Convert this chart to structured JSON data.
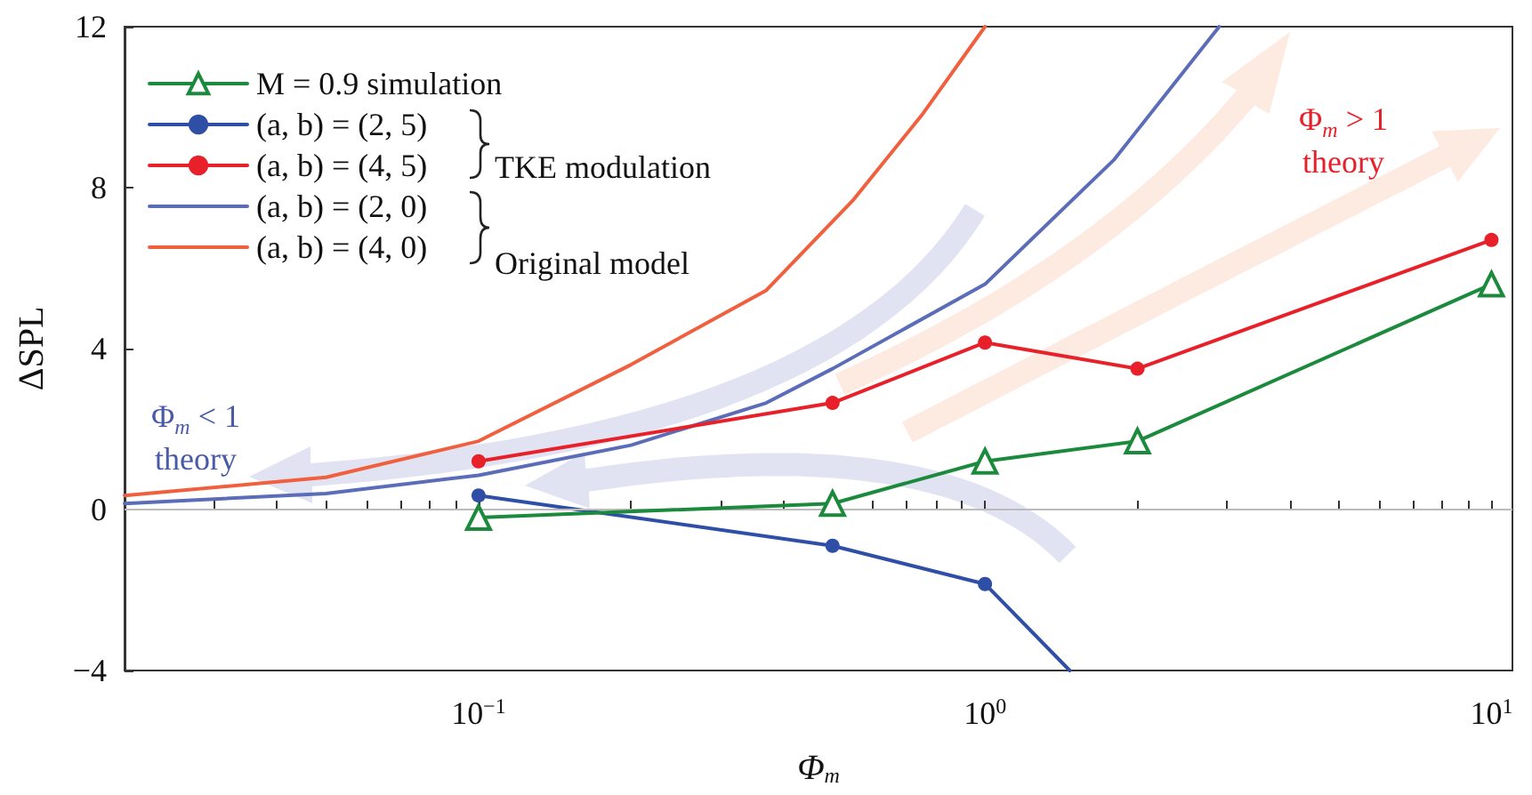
{
  "chart_data": {
    "type": "line",
    "xlabel": "Φ$_{m}$",
    "ylabel": "ΔSPL",
    "log": "x",
    "xlim": [
      0.02,
      11
    ],
    "ylim": [
      -4,
      12
    ],
    "xticks": [
      {
        "value": 0.03,
        "label": null
      },
      {
        "value": 0.04,
        "label": null
      },
      {
        "value": 0.05,
        "label": null
      },
      {
        "value": 0.06,
        "label": null
      },
      {
        "value": 0.07,
        "label": null
      },
      {
        "value": 0.08,
        "label": null
      },
      {
        "value": 0.09,
        "label": null
      },
      {
        "value": 0.1,
        "label": "10$^{−1}$"
      },
      {
        "value": 0.2,
        "label": null
      },
      {
        "value": 0.3,
        "label": null
      },
      {
        "value": 0.4,
        "label": null
      },
      {
        "value": 0.5,
        "label": null
      },
      {
        "value": 0.6,
        "label": null
      },
      {
        "value": 0.7,
        "label": null
      },
      {
        "value": 0.8,
        "label": null
      },
      {
        "value": 0.9,
        "label": null
      },
      {
        "value": 1,
        "label": "10$^{0}$"
      },
      {
        "value": 2,
        "label": null
      },
      {
        "value": 3,
        "label": null
      },
      {
        "value": 4,
        "label": null
      },
      {
        "value": 5,
        "label": null
      },
      {
        "value": 6,
        "label": null
      },
      {
        "value": 7,
        "label": null
      },
      {
        "value": 8,
        "label": null
      },
      {
        "value": 9,
        "label": null
      },
      {
        "value": 10,
        "label": "10$^{1}$"
      }
    ],
    "yticks": [
      {
        "value": -4,
        "label": "−4"
      },
      0,
      4,
      8,
      12
    ],
    "grid": false,
    "legend": "top left",
    "series": [
      {
        "name": "M = 0.9 simulation",
        "color": "#1b8a3c",
        "marker": "triangle",
        "x": [
          0.1,
          0.5,
          1,
          2,
          10
        ],
        "values": [
          -0.2,
          0.15,
          1.2,
          1.7,
          5.6
        ]
      },
      {
        "name": "(a, b) = (2, 5)",
        "color": "#2f4ea6",
        "marker": "circle",
        "x": [
          0.1,
          0.5,
          1,
          1.47
        ],
        "values": [
          0.35,
          -0.9,
          -1.85,
          -4
        ]
      },
      {
        "name": "(a, b) = (4, 5)",
        "color": "#e8202a",
        "marker": "circle",
        "x": [
          0.1,
          0.5,
          1,
          2,
          10
        ],
        "values": [
          1.2,
          2.65,
          4.15,
          3.5,
          6.7
        ]
      },
      {
        "name": "(a, b) = (2, 0)",
        "color": "#5b6cb8",
        "marker": "none",
        "x": [
          0.02,
          0.05,
          0.1,
          0.2,
          0.37,
          0.5,
          1,
          1.8,
          2.9
        ],
        "values": [
          0.15,
          0.4,
          0.85,
          1.6,
          2.65,
          3.5,
          5.6,
          8.7,
          12
        ]
      },
      {
        "name": "(a, b) = (4, 0)",
        "color": "#f0603f",
        "marker": "none",
        "x": [
          0.02,
          0.05,
          0.1,
          0.2,
          0.37,
          0.55,
          0.75,
          1
        ],
        "values": [
          0.35,
          0.8,
          1.7,
          3.6,
          5.45,
          7.7,
          9.8,
          12
        ]
      }
    ],
    "ref_lines": [
      {
        "axis": "y",
        "value": 0,
        "color": "#bbbbbb"
      }
    ],
    "annotations": [
      "TKE modulation",
      "Original model",
      "Φ$_{m}$ < 1\ntheory",
      "Φ$_{m}$ > 1\ntheory"
    ]
  }
}
